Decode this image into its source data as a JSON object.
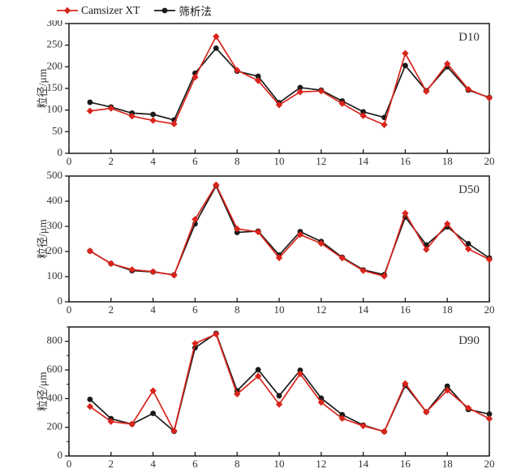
{
  "legend": {
    "series": [
      {
        "label": "Camsizer XT",
        "color": "#d9251c",
        "marker": "diamond"
      },
      {
        "label": "筛析法",
        "color": "#1a1a1a",
        "marker": "circle"
      }
    ]
  },
  "colors": {
    "axis": "#1a1a1a",
    "tick_text": "#333333",
    "red_series": "#d9251c",
    "black_series": "#1a1a1a"
  },
  "chart_data": [
    {
      "type": "line",
      "panel_label": "D10",
      "ylabel": "粒径/μm",
      "xlim": [
        0,
        20
      ],
      "xtick_step": 2,
      "ylim": [
        0,
        300
      ],
      "ytick_step": 50,
      "yminor_step": null,
      "x": [
        1,
        2,
        3,
        4,
        5,
        6,
        7,
        8,
        9,
        10,
        11,
        12,
        13,
        14,
        15,
        16,
        17,
        18,
        19,
        20
      ],
      "series": [
        {
          "name": "Camsizer XT",
          "color": "#d9251c",
          "marker": "diamond",
          "values": [
            98,
            104,
            86,
            76,
            68,
            176,
            270,
            192,
            168,
            112,
            142,
            144,
            115,
            87,
            66,
            231,
            143,
            207,
            148,
            128
          ]
        },
        {
          "name": "筛析法",
          "color": "#1a1a1a",
          "marker": "circle",
          "values": [
            118,
            107,
            93,
            90,
            77,
            185,
            243,
            190,
            178,
            117,
            152,
            146,
            121,
            96,
            83,
            203,
            145,
            200,
            146,
            129
          ]
        }
      ]
    },
    {
      "type": "line",
      "panel_label": "D50",
      "ylabel": "粒径/μm",
      "xlim": [
        0,
        20
      ],
      "xtick_step": 2,
      "ylim": [
        0,
        500
      ],
      "ytick_step": 100,
      "yminor_step": null,
      "x": [
        1,
        2,
        3,
        4,
        5,
        6,
        7,
        8,
        9,
        10,
        11,
        12,
        13,
        14,
        15,
        16,
        17,
        18,
        19,
        20
      ],
      "series": [
        {
          "name": "Camsizer XT",
          "color": "#d9251c",
          "marker": "diamond",
          "values": [
            202,
            152,
            128,
            120,
            106,
            328,
            465,
            290,
            278,
            175,
            267,
            232,
            174,
            124,
            102,
            352,
            208,
            310,
            210,
            168
          ]
        },
        {
          "name": "筛析法",
          "color": "#1a1a1a",
          "marker": "circle",
          "values": [
            202,
            152,
            124,
            119,
            107,
            310,
            461,
            276,
            281,
            186,
            279,
            240,
            177,
            127,
            108,
            337,
            226,
            298,
            231,
            174
          ]
        }
      ]
    },
    {
      "type": "line",
      "panel_label": "D90",
      "ylabel": "粒径/μm",
      "xlim": [
        0,
        20
      ],
      "xtick_step": 2,
      "ylim": [
        0,
        900
      ],
      "ytick_step": 200,
      "yminor_step": 100,
      "x": [
        1,
        2,
        3,
        4,
        5,
        6,
        7,
        8,
        9,
        10,
        11,
        12,
        13,
        14,
        15,
        16,
        17,
        18,
        19,
        20
      ],
      "series": [
        {
          "name": "Camsizer XT",
          "color": "#d9251c",
          "marker": "diamond",
          "values": [
            345,
            240,
            222,
            455,
            175,
            785,
            850,
            432,
            557,
            360,
            573,
            374,
            262,
            210,
            170,
            505,
            307,
            458,
            335,
            260
          ]
        },
        {
          "name": "筛析法",
          "color": "#1a1a1a",
          "marker": "circle",
          "values": [
            395,
            260,
            222,
            297,
            172,
            755,
            855,
            455,
            602,
            420,
            598,
            403,
            288,
            215,
            170,
            492,
            307,
            487,
            324,
            292
          ]
        }
      ]
    }
  ]
}
